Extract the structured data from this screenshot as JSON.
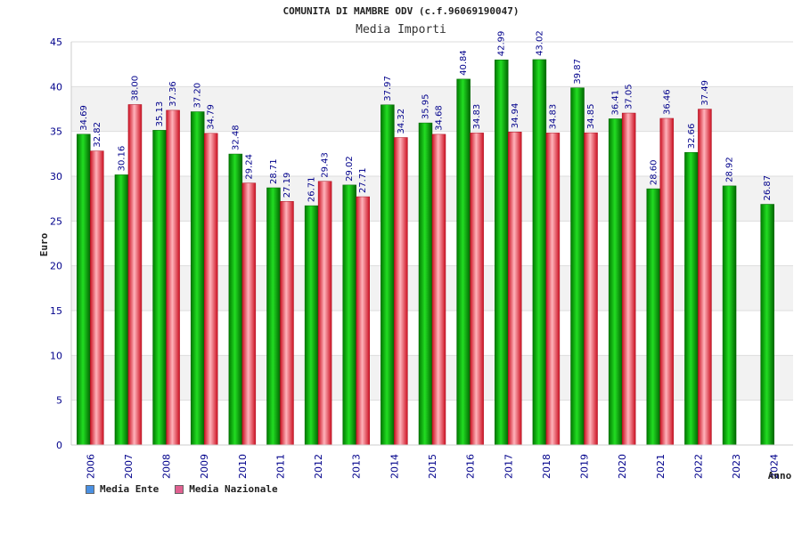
{
  "chart_data": {
    "type": "bar",
    "title": "COMUNITA DI MAMBRE ODV (c.f.96069190047)",
    "subtitle": "Media Importi",
    "xlabel": "Anno",
    "ylabel": "Euro",
    "ylim": [
      0,
      45
    ],
    "yticks": [
      "0",
      "5",
      "10",
      "15",
      "20",
      "25",
      "30",
      "35",
      "40",
      "45"
    ],
    "categories": [
      "2006",
      "2007",
      "2008",
      "2009",
      "2010",
      "2011",
      "2012",
      "2013",
      "2014",
      "2015",
      "2016",
      "2017",
      "2018",
      "2019",
      "2020",
      "2021",
      "2022",
      "2023",
      "2024"
    ],
    "series": [
      {
        "name": "Media Ente",
        "color": "#00aa00",
        "values": [
          34.69,
          30.16,
          35.13,
          37.2,
          32.48,
          28.71,
          26.71,
          29.02,
          37.97,
          35.95,
          40.84,
          42.99,
          43.02,
          39.87,
          36.41,
          28.6,
          32.66,
          28.92,
          26.87
        ],
        "labels": [
          "34.69",
          "30.16",
          "35.13",
          "37.20",
          "32.48",
          "28.71",
          "26.71",
          "29.02",
          "37.97",
          "35.95",
          "40.84",
          "42.99",
          "43.02",
          "39.87",
          "36.41",
          "28.60",
          "32.66",
          "28.92",
          "26.87"
        ]
      },
      {
        "name": "Media Nazionale",
        "color": "#dd2233",
        "values": [
          32.82,
          38.0,
          37.36,
          34.79,
          29.24,
          27.19,
          29.43,
          27.71,
          34.32,
          34.68,
          34.83,
          34.94,
          34.83,
          34.85,
          37.05,
          36.46,
          37.49,
          null,
          null
        ],
        "labels": [
          "32.82",
          "38.00",
          "37.36",
          "34.79",
          "29.24",
          "27.19",
          "29.43",
          "27.71",
          "34.32",
          "34.68",
          "34.83",
          "34.94",
          "34.83",
          "34.85",
          "37.05",
          "36.46",
          "37.49",
          "",
          ""
        ]
      }
    ],
    "grid": true,
    "legend_position": "bottom-left"
  },
  "legend": {
    "ente_label": "Media Ente",
    "ente_color": "#4a90e2",
    "naz_label": "Media Nazionale",
    "naz_color": "#e06090"
  }
}
